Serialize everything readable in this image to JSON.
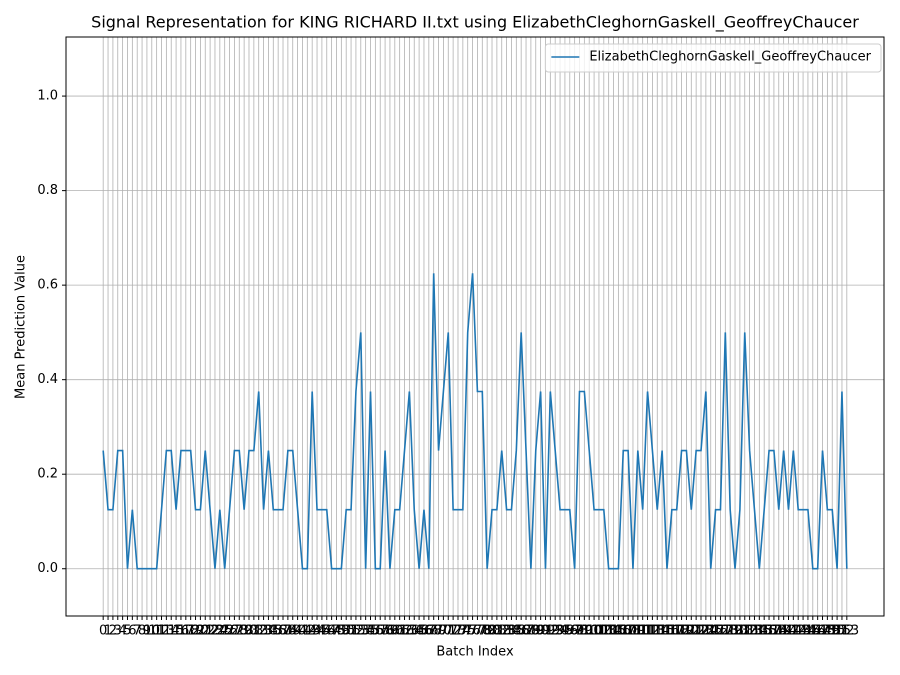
{
  "chart_data": {
    "type": "line",
    "title": "Signal Representation for KING RICHARD II.txt using ElizabethCleghornGaskell_GeoffreyChaucer",
    "x_label": "Batch Index",
    "y_label": "Mean Prediction Value",
    "x": [
      0,
      1,
      2,
      3,
      4,
      5,
      6,
      7,
      8,
      9,
      10,
      11,
      12,
      13,
      14,
      15,
      16,
      17,
      18,
      19,
      20,
      21,
      22,
      23,
      24,
      25,
      26,
      27,
      28,
      29,
      30,
      31,
      32,
      33,
      34,
      35,
      36,
      37,
      38,
      39,
      40,
      41,
      42,
      43,
      44,
      45,
      46,
      47,
      48,
      49,
      50,
      51,
      52,
      53,
      54,
      55,
      56,
      57,
      58,
      59,
      60,
      61,
      62,
      63,
      64,
      65,
      66,
      67,
      68,
      69,
      70,
      71,
      72,
      73,
      74,
      75,
      76,
      77,
      78,
      79,
      80,
      81,
      82,
      83,
      84,
      85,
      86,
      87,
      88,
      89,
      90,
      91,
      92,
      93,
      94,
      95,
      96,
      97,
      98,
      99,
      100,
      101,
      102,
      103,
      104,
      105,
      106,
      107,
      108,
      109,
      110,
      111,
      112,
      113,
      114,
      115,
      116,
      117,
      118,
      119,
      120,
      121,
      122,
      123,
      124,
      125,
      126,
      127,
      128,
      129,
      130,
      131,
      132,
      133,
      134,
      135,
      136,
      137,
      138,
      139,
      140,
      141,
      142,
      143,
      144,
      145,
      146,
      147,
      148,
      149,
      150,
      151,
      152,
      153
    ],
    "series": [
      {
        "name": "ElizabethCleghornGaskell_GeoffreyChaucer",
        "color": "#1f77b4",
        "values": [
          0.25,
          0.125,
          0.125,
          0.25,
          0.25,
          0,
          0.125,
          0,
          0,
          0,
          0,
          0,
          0.125,
          0.25,
          0.25,
          0.125,
          0.25,
          0.25,
          0.25,
          0.125,
          0.125,
          0.25,
          0.125,
          0,
          0.125,
          0,
          0.125,
          0.25,
          0.25,
          0.125,
          0.25,
          0.25,
          0.375,
          0.125,
          0.25,
          0.125,
          0.125,
          0.125,
          0.25,
          0.25,
          0.125,
          0,
          0,
          0.375,
          0.125,
          0.125,
          0.125,
          0,
          0,
          0,
          0.125,
          0.125,
          0.375,
          0.5,
          0,
          0.375,
          0,
          0,
          0.25,
          0,
          0.125,
          0.125,
          0.25,
          0.375,
          0.125,
          0,
          0.125,
          0,
          0.625,
          0.25,
          0.375,
          0.5,
          0.125,
          0.125,
          0.125,
          0.5,
          0.625,
          0.375,
          0.375,
          0,
          0.125,
          0.125,
          0.25,
          0.125,
          0.125,
          0.25,
          0.5,
          0.25,
          0,
          0.25,
          0.375,
          0,
          0.375,
          0.25,
          0.125,
          0.125,
          0.125,
          0,
          0.375,
          0.375,
          0.25,
          0.125,
          0.125,
          0.125,
          0,
          0,
          0,
          0.25,
          0.25,
          0,
          0.25,
          0.125,
          0.375,
          0.25,
          0.125,
          0.25,
          0,
          0.125,
          0.125,
          0.25,
          0.25,
          0.125,
          0.25,
          0.25,
          0.375,
          0,
          0.125,
          0.125,
          0.5,
          0.125,
          0,
          0.125,
          0.5,
          0.25,
          0.125,
          0,
          0.125,
          0.25,
          0.25,
          0.125,
          0.25,
          0.125,
          0.25,
          0.125,
          0.125,
          0.125,
          0,
          0,
          0.25,
          0.125,
          0.125,
          0,
          0.375,
          0
        ]
      }
    ],
    "xlim": [
      -7.65,
      160.65
    ],
    "ylim": [
      -0.1,
      1.125
    ],
    "xticks": [
      0,
      1,
      2,
      3,
      4,
      5,
      6,
      7,
      8,
      9,
      10,
      11,
      12,
      13,
      14,
      15,
      16,
      17,
      18,
      19,
      20,
      21,
      22,
      23,
      24,
      25,
      26,
      27,
      28,
      29,
      30,
      31,
      32,
      33,
      34,
      35,
      36,
      37,
      38,
      39,
      40,
      41,
      42,
      43,
      44,
      45,
      46,
      47,
      48,
      49,
      50,
      51,
      52,
      53,
      54,
      55,
      56,
      57,
      58,
      59,
      60,
      61,
      62,
      63,
      64,
      65,
      66,
      67,
      68,
      69,
      70,
      71,
      72,
      73,
      74,
      75,
      76,
      77,
      78,
      79,
      80,
      81,
      82,
      83,
      84,
      85,
      86,
      87,
      88,
      89,
      90,
      91,
      92,
      93,
      94,
      95,
      96,
      97,
      98,
      99,
      100,
      101,
      102,
      103,
      104,
      105,
      106,
      107,
      108,
      109,
      110,
      111,
      112,
      113,
      114,
      115,
      116,
      117,
      118,
      119,
      120,
      121,
      122,
      123,
      124,
      125,
      126,
      127,
      128,
      129,
      130,
      131,
      132,
      133,
      134,
      135,
      136,
      137,
      138,
      139,
      140,
      141,
      142,
      143,
      144,
      145,
      146,
      147,
      148,
      149,
      150,
      151,
      152,
      153
    ],
    "yticks": [
      {
        "value": 0,
        "label": "0.0"
      },
      0.2,
      0.4,
      0.6,
      0.8,
      {
        "value": 1,
        "label": "1.0"
      }
    ],
    "grid": true,
    "legend": "upper right"
  }
}
